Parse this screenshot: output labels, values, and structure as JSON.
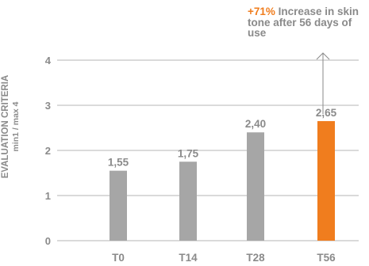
{
  "annotation": {
    "highlight": "+71%",
    "text": "Increase in skin tone after 56 days of use"
  },
  "chart_data": {
    "type": "bar",
    "categories": [
      "T0",
      "T14",
      "T28",
      "T56"
    ],
    "values": [
      1.55,
      1.75,
      2.4,
      2.65
    ],
    "value_labels": [
      "1,55",
      "1,75",
      "2,40",
      "2,65"
    ],
    "ylabel": "EVALUATION CRITERIA",
    "ylabel_sub": "min1 / max 4",
    "yticks": [
      "0",
      "1",
      "2",
      "3",
      "4"
    ],
    "ylim": [
      0,
      4.5
    ],
    "grid": true,
    "highlight_category": "T56",
    "colors": {
      "bar": "#a6a6a6",
      "highlight": "#f07d1e",
      "grid": "#b5b5b5",
      "text": "#8a8a8a"
    }
  }
}
